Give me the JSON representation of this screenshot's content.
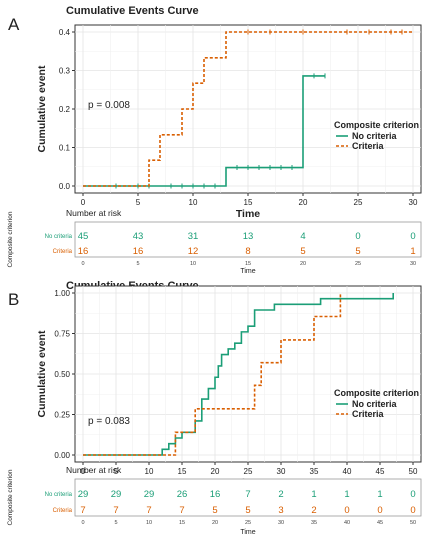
{
  "chart_data": [
    {
      "panel_label": "A",
      "type": "line",
      "title": "Cumulative Events Curve",
      "xlabel": "Time",
      "ylabel": "Cumulative event",
      "xlim": [
        0,
        30
      ],
      "ylim": [
        0,
        0.4
      ],
      "x_ticks": [
        0,
        5,
        10,
        15,
        20,
        25,
        30
      ],
      "x_tick_labels": [
        "0",
        "5",
        "10",
        "15",
        "20",
        "25",
        "30"
      ],
      "y_ticks": [
        0,
        0.1,
        0.2,
        0.3,
        0.4
      ],
      "y_tick_labels": [
        "0.0",
        "0.1",
        "0.2",
        "0.3",
        "0.4"
      ],
      "grid": true,
      "annotation": "p = 0.008",
      "legend": {
        "title": "Composite criterion",
        "position": "right",
        "entries": [
          "No criteria",
          "Criteria"
        ]
      },
      "series": [
        {
          "name": "No criteria",
          "color": "#1b9e77",
          "dash": "solid",
          "steps": [
            [
              0,
              0
            ],
            [
              13,
              0.048
            ],
            [
              20,
              0.286
            ]
          ],
          "end": 22,
          "censor_x": [
            3,
            5,
            6,
            8,
            9,
            10,
            11,
            12,
            14,
            15,
            16,
            17,
            18,
            19,
            21,
            22
          ]
        },
        {
          "name": "Criteria",
          "color": "#d95f02",
          "dash": "dashed",
          "steps": [
            [
              0,
              0
            ],
            [
              6,
              0.067
            ],
            [
              7,
              0.133
            ],
            [
              9,
              0.2
            ],
            [
              10,
              0.267
            ],
            [
              11,
              0.333
            ],
            [
              13,
              0.4
            ]
          ],
          "end": 30,
          "censor_x": [
            15,
            17,
            20,
            24,
            26,
            28,
            29
          ]
        }
      ],
      "risk_table": {
        "title": "Number at risk",
        "side_label": "Composite criterion",
        "xlabel": "Time",
        "times": [
          0,
          5,
          10,
          15,
          20,
          25,
          30
        ],
        "time_labels": [
          "0",
          "5",
          "10",
          "15",
          "20",
          "25",
          "30"
        ],
        "rows": [
          {
            "label": "No criteria",
            "color": "#1b9e77",
            "values": [
              "45",
              "43",
              "31",
              "13",
              "4",
              "0",
              "0"
            ]
          },
          {
            "label": "Criteria",
            "color": "#d95f02",
            "values": [
              "16",
              "16",
              "12",
              "8",
              "5",
              "5",
              "1"
            ]
          }
        ]
      }
    },
    {
      "panel_label": "B",
      "type": "line",
      "title": "Cumulative Events Curve",
      "xlabel": "Time",
      "ylabel": "Cumulative event",
      "xlim": [
        0,
        50
      ],
      "ylim": [
        0,
        1
      ],
      "x_ticks": [
        0,
        5,
        10,
        15,
        20,
        25,
        30,
        35,
        40,
        45,
        50
      ],
      "x_tick_labels": [
        "0",
        "5",
        "10",
        "15",
        "20",
        "25",
        "30",
        "35",
        "40",
        "45",
        "50"
      ],
      "y_ticks": [
        0,
        0.25,
        0.5,
        0.75,
        1
      ],
      "y_tick_labels": [
        "0.00",
        "0.25",
        "0.50",
        "0.75",
        "1.00"
      ],
      "grid": true,
      "annotation": "p = 0.083",
      "legend": {
        "title": "Composite criterion",
        "position": "right",
        "entries": [
          "No criteria",
          "Criteria"
        ]
      },
      "series": [
        {
          "name": "No criteria",
          "color": "#1b9e77",
          "dash": "solid",
          "steps": [
            [
              0,
              0
            ],
            [
              12,
              0.035
            ],
            [
              13,
              0.07
            ],
            [
              14,
              0.105
            ],
            [
              15,
              0.14
            ],
            [
              17,
              0.21
            ],
            [
              18,
              0.345
            ],
            [
              19,
              0.41
            ],
            [
              20,
              0.48
            ],
            [
              20.5,
              0.55
            ],
            [
              21,
              0.62
            ],
            [
              22,
              0.655
            ],
            [
              23,
              0.69
            ],
            [
              24,
              0.76
            ],
            [
              25,
              0.795
            ],
            [
              26,
              0.895
            ],
            [
              29,
              0.93
            ],
            [
              36,
              0.965
            ],
            [
              47,
              1.0
            ]
          ],
          "end": 47,
          "censor_x": []
        },
        {
          "name": "Criteria",
          "color": "#d95f02",
          "dash": "dashed",
          "steps": [
            [
              0,
              0
            ],
            [
              14,
              0.14
            ],
            [
              17,
              0.285
            ],
            [
              26,
              0.43
            ],
            [
              27,
              0.57
            ],
            [
              30,
              0.71
            ],
            [
              35,
              0.855
            ],
            [
              39,
              1.0
            ]
          ],
          "end": 39,
          "censor_x": []
        }
      ],
      "risk_table": {
        "title": "Number at risk",
        "side_label": "Composite criterion",
        "xlabel": "Time",
        "times": [
          0,
          5,
          10,
          15,
          20,
          25,
          30,
          35,
          40,
          45,
          50
        ],
        "time_labels": [
          "0",
          "5",
          "10",
          "15",
          "20",
          "25",
          "30",
          "35",
          "40",
          "45",
          "50"
        ],
        "rows": [
          {
            "label": "No criteria",
            "color": "#1b9e77",
            "values": [
              "29",
              "29",
              "29",
              "26",
              "16",
              "7",
              "2",
              "1",
              "1",
              "1",
              "0"
            ]
          },
          {
            "label": "Criteria",
            "color": "#d95f02",
            "values": [
              "7",
              "7",
              "7",
              "7",
              "5",
              "5",
              "3",
              "2",
              "0",
              "0",
              "0"
            ]
          }
        ]
      }
    }
  ]
}
